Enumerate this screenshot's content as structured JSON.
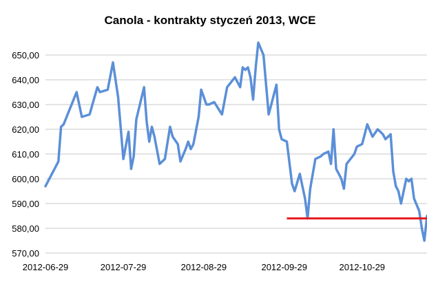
{
  "chart_data": {
    "type": "line",
    "title": "Canola - kontrakty styczeń 2013, WCE",
    "xlabel": "",
    "ylabel": "",
    "ylim": [
      570,
      655
    ],
    "xlim": [
      "2012-06-29",
      "2012-11-23"
    ],
    "y_ticks": [
      "570,00",
      "580,00",
      "590,00",
      "600,00",
      "610,00",
      "620,00",
      "630,00",
      "640,00",
      "650,00"
    ],
    "y_tick_values": [
      570,
      580,
      590,
      600,
      610,
      620,
      630,
      640,
      650
    ],
    "x_ticks": [
      "2012-06-29",
      "2012-07-29",
      "2012-08-29",
      "2012-09-29",
      "2012-10-29"
    ],
    "grid": "horizontal",
    "legend": "none",
    "colors": {
      "series": "#5b8fd8",
      "reference": "#e8181f",
      "grid": "#c8c8c8"
    },
    "series": [
      {
        "color": "#5b8fd8",
        "x": [
          "2012-06-29",
          "2012-07-04",
          "2012-07-05",
          "2012-07-06",
          "2012-07-11",
          "2012-07-13",
          "2012-07-16",
          "2012-07-19",
          "2012-07-20",
          "2012-07-23",
          "2012-07-25",
          "2012-07-27",
          "2012-07-29",
          "2012-07-31",
          "2012-08-01",
          "2012-08-02",
          "2012-08-03",
          "2012-08-06",
          "2012-08-07",
          "2012-08-08",
          "2012-08-09",
          "2012-08-10",
          "2012-08-12",
          "2012-08-14",
          "2012-08-16",
          "2012-08-17",
          "2012-08-19",
          "2012-08-20",
          "2012-08-22",
          "2012-08-23",
          "2012-08-24",
          "2012-08-25",
          "2012-08-27",
          "2012-08-28",
          "2012-08-30",
          "2012-08-31",
          "2012-09-02",
          "2012-09-05",
          "2012-09-07",
          "2012-09-10",
          "2012-09-11",
          "2012-09-12",
          "2012-09-13",
          "2012-09-14",
          "2012-09-15",
          "2012-09-16",
          "2012-09-17",
          "2012-09-18",
          "2012-09-19",
          "2012-09-21",
          "2012-09-23",
          "2012-09-24",
          "2012-09-26",
          "2012-09-27",
          "2012-09-28",
          "2012-09-30",
          "2012-10-02",
          "2012-10-03",
          "2012-10-05",
          "2012-10-07",
          "2012-10-08",
          "2012-10-09",
          "2012-10-11",
          "2012-10-13",
          "2012-10-14",
          "2012-10-16",
          "2012-10-17",
          "2012-10-18",
          "2012-10-19",
          "2012-10-21",
          "2012-10-22",
          "2012-10-23",
          "2012-10-26",
          "2012-10-27",
          "2012-10-29",
          "2012-10-31",
          "2012-11-02",
          "2012-11-04",
          "2012-11-05",
          "2012-11-06",
          "2012-11-07",
          "2012-11-09",
          "2012-11-10",
          "2012-11-11",
          "2012-11-12",
          "2012-11-13",
          "2012-11-15",
          "2012-11-16",
          "2012-11-17",
          "2012-11-18",
          "2012-11-20",
          "2012-11-21",
          "2012-11-22",
          "2012-11-23"
        ],
        "y": [
          597,
          607,
          621,
          622,
          635,
          625,
          626,
          637,
          635,
          636,
          647,
          633,
          608,
          619,
          604,
          609,
          624,
          637,
          623,
          615,
          621,
          617,
          606,
          608,
          621,
          617,
          614,
          607,
          612,
          615,
          612,
          614,
          625,
          636,
          630,
          630,
          631,
          626,
          637,
          641,
          639,
          637,
          645,
          644,
          645,
          641,
          632,
          645,
          655,
          650,
          626,
          630,
          638,
          620,
          616,
          615,
          598,
          595,
          602,
          592,
          584,
          596,
          608,
          609,
          610,
          611,
          606,
          620,
          604,
          600,
          596,
          606,
          610,
          613,
          614,
          622,
          617,
          620,
          619,
          618,
          616,
          618,
          603,
          597,
          595,
          590,
          600,
          599,
          600,
          592,
          587,
          580,
          575,
          585
        ]
      }
    ],
    "reference_line": {
      "y": 584,
      "x_start": "2012-09-30",
      "x_end": "2012-11-23",
      "color": "#e8181f"
    }
  }
}
